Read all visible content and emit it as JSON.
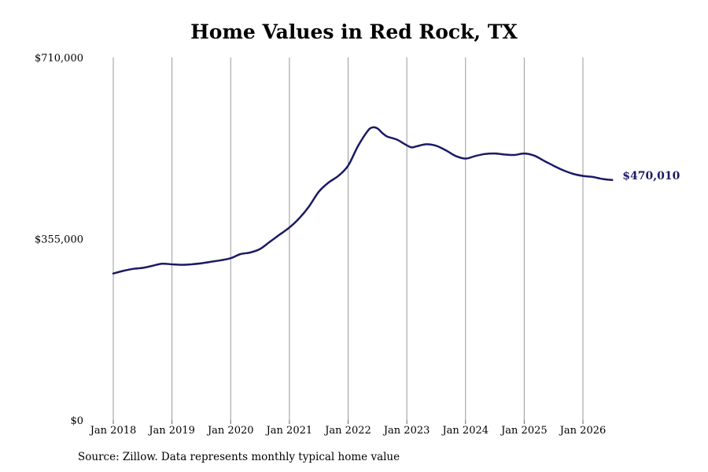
{
  "chart_data": {
    "type": "line",
    "title": "Home Values in Red Rock, TX",
    "xlabel": "",
    "ylabel": "",
    "ylim": [
      0,
      710000
    ],
    "y_ticks": [
      0,
      355000,
      710000
    ],
    "y_tick_labels": [
      "$0",
      "$355,000",
      "$710,000"
    ],
    "x_ticks": [
      "2018-01",
      "2019-01",
      "2020-01",
      "2021-01",
      "2022-01",
      "2023-01",
      "2024-01",
      "2025-01",
      "2026-01"
    ],
    "x_tick_labels": [
      "Jan 2018",
      "Jan 2019",
      "Jan 2020",
      "Jan 2021",
      "Jan 2022",
      "Jan 2023",
      "Jan 2024",
      "Jan 2025",
      "Jan 2026"
    ],
    "grid": "vertical",
    "end_label": "$470,010",
    "line_color": "#1a1a66",
    "series": [
      {
        "x": [
          "2018-01",
          "2018-03",
          "2018-05",
          "2018-07",
          "2018-09",
          "2018-11",
          "2019-01",
          "2019-03",
          "2019-05",
          "2019-07",
          "2019-09",
          "2019-11",
          "2020-01",
          "2020-03",
          "2020-05",
          "2020-07",
          "2020-09",
          "2020-11",
          "2021-01",
          "2021-03",
          "2021-05",
          "2021-07",
          "2021-09",
          "2021-11",
          "2022-01",
          "2022-03",
          "2022-05",
          "2022-06",
          "2022-07",
          "2022-08",
          "2022-09",
          "2022-11",
          "2023-01",
          "2023-02",
          "2023-03",
          "2023-05",
          "2023-07",
          "2023-09",
          "2023-11",
          "2024-01",
          "2024-03",
          "2024-05",
          "2024-07",
          "2024-09",
          "2024-11",
          "2025-01",
          "2025-03",
          "2025-05",
          "2025-07",
          "2025-09",
          "2025-11",
          "2026-01",
          "2026-03",
          "2026-05",
          "2026-07"
        ],
        "y": [
          287000,
          292000,
          296000,
          298000,
          302000,
          306000,
          305000,
          304000,
          305000,
          307000,
          310000,
          313000,
          317000,
          325000,
          328000,
          335000,
          349000,
          363000,
          377000,
          395000,
          418000,
          447000,
          465000,
          478000,
          498000,
          536000,
          566000,
          573000,
          571000,
          562000,
          555000,
          549000,
          538000,
          534000,
          536000,
          540000,
          537000,
          528000,
          517000,
          512000,
          517000,
          521000,
          522000,
          520000,
          519000,
          522000,
          518000,
          508000,
          498000,
          489000,
          482000,
          478000,
          476000,
          472000,
          470010
        ]
      }
    ]
  },
  "footer": {
    "source": "Source: Zillow. Data represents monthly typical home value"
  }
}
